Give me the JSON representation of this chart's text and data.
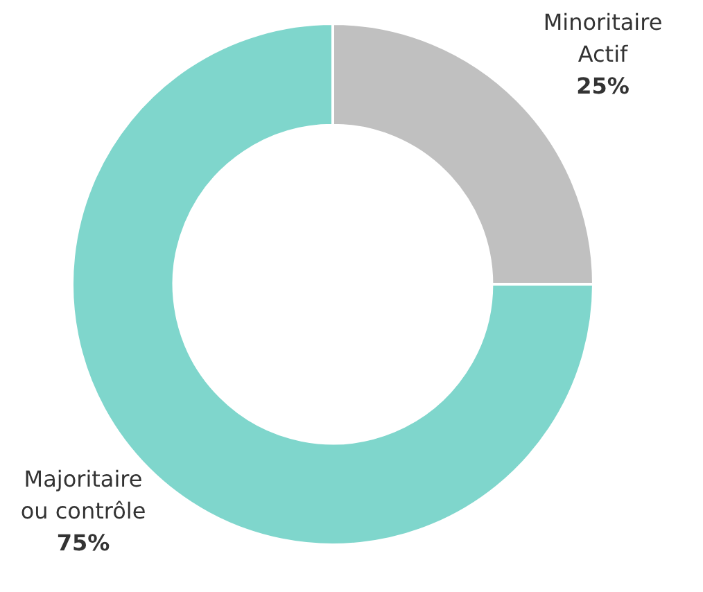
{
  "chart_data": {
    "type": "donut",
    "categories": [
      "Minoritaire\nActif",
      "Majoritaire\nou contrôle"
    ],
    "values": [
      25,
      75
    ],
    "colors": [
      "#c0c0c0",
      "#7fd6cc"
    ],
    "value_labels": [
      "25%",
      "75%"
    ],
    "legend": false
  }
}
